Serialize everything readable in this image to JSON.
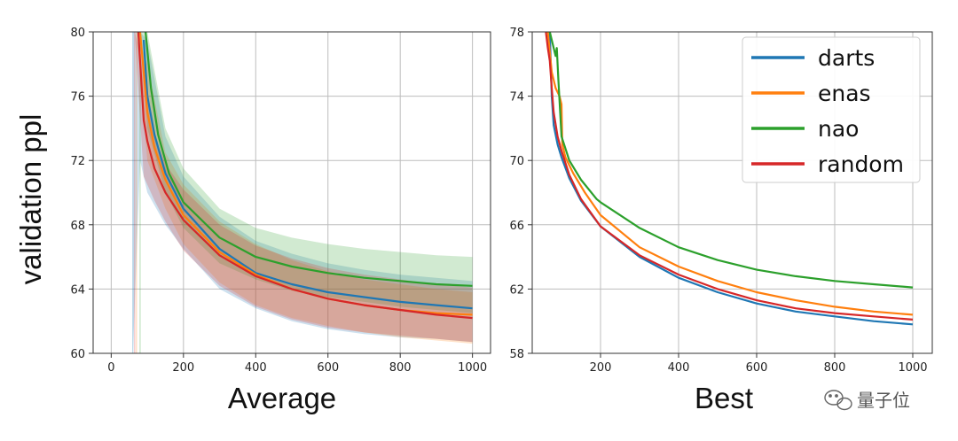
{
  "figure": {
    "ylabel": "validation ppl",
    "watermark": "量子位",
    "watermark_icon": "wechat-icon"
  },
  "chart_data": [
    {
      "type": "line",
      "title": "",
      "xlabel": "Average",
      "ylabel": "validation ppl",
      "xlim": [
        -50,
        1050
      ],
      "ylim": [
        60,
        80
      ],
      "xticks": [
        0,
        200,
        400,
        600,
        800,
        1000
      ],
      "yticks": [
        60,
        64,
        68,
        72,
        76,
        80
      ],
      "grid": true,
      "series": [
        {
          "name": "darts",
          "color": "#1f77b4",
          "x": [
            90,
            100,
            120,
            150,
            200,
            300,
            400,
            500,
            600,
            700,
            800,
            900,
            1000
          ],
          "y": [
            79.5,
            76.0,
            73.6,
            71.2,
            69.0,
            66.5,
            65.0,
            64.3,
            63.8,
            63.5,
            63.2,
            63.0,
            62.8
          ],
          "band": {
            "x": [
              60,
              80,
              100,
              150,
              200,
              300,
              400,
              500,
              600,
              700,
              800,
              900,
              1000
            ],
            "upper": [
              80,
              80,
              79.5,
              73.5,
              71.0,
              68.5,
              67.0,
              66.2,
              65.6,
              65.2,
              64.9,
              64.7,
              64.5
            ],
            "lower": [
              60,
              72,
              70.0,
              68.0,
              66.5,
              64.0,
              62.8,
              62.0,
              61.5,
              61.2,
              61.0,
              60.9,
              60.7
            ]
          }
        },
        {
          "name": "enas",
          "color": "#ff7f0e",
          "x": [
            80,
            100,
            120,
            150,
            200,
            300,
            400,
            500,
            600,
            700,
            800,
            900,
            1000
          ],
          "y": [
            80,
            75.0,
            72.8,
            70.8,
            68.6,
            66.3,
            64.9,
            64.0,
            63.4,
            63.0,
            62.7,
            62.5,
            62.4
          ],
          "band": {
            "x": [
              70,
              100,
              150,
              200,
              300,
              400,
              500,
              600,
              700,
              800,
              900,
              1000
            ],
            "upper": [
              80,
              78.0,
              72.5,
              70.5,
              68.2,
              66.8,
              65.8,
              65.1,
              64.6,
              64.3,
              64.0,
              63.8
            ],
            "lower": [
              80,
              72.0,
              69.0,
              66.8,
              64.4,
              63.0,
              62.2,
              61.7,
              61.3,
              61.0,
              60.8,
              60.6
            ]
          }
        },
        {
          "name": "nao",
          "color": "#2ca02c",
          "x": [
            95,
            110,
            130,
            160,
            200,
            300,
            400,
            500,
            600,
            700,
            800,
            900,
            1000
          ],
          "y": [
            80,
            76.5,
            73.6,
            71.2,
            69.4,
            67.2,
            66.0,
            65.4,
            65.0,
            64.7,
            64.5,
            64.3,
            64.2
          ],
          "band": {
            "x": [
              80,
              100,
              150,
              200,
              300,
              400,
              500,
              600,
              700,
              800,
              900,
              1000
            ],
            "upper": [
              80,
              80,
              74.0,
              71.5,
              69.0,
              67.8,
              67.2,
              66.8,
              66.5,
              66.3,
              66.1,
              66.0
            ],
            "lower": [
              80,
              74.0,
              70.0,
              67.8,
              65.6,
              64.6,
              63.9,
              63.5,
              63.2,
              62.9,
              62.7,
              62.5
            ]
          }
        },
        {
          "name": "random",
          "color": "#d62728",
          "x": [
            75,
            90,
            100,
            120,
            150,
            200,
            300,
            400,
            500,
            600,
            700,
            800,
            900,
            1000
          ],
          "y": [
            80,
            74.5,
            73.2,
            71.5,
            70.0,
            68.3,
            66.1,
            64.8,
            64.0,
            63.4,
            63.0,
            62.7,
            62.4,
            62.2
          ],
          "band": {
            "x": [
              65,
              90,
              120,
              150,
              200,
              300,
              400,
              500,
              600,
              700,
              800,
              900,
              1000
            ],
            "upper": [
              80,
              78.0,
              73.5,
              71.8,
              70.2,
              68.0,
              66.7,
              65.9,
              65.3,
              64.9,
              64.6,
              64.3,
              64.1
            ],
            "lower": [
              80,
              71.0,
              69.5,
              68.2,
              66.4,
              64.2,
              62.9,
              62.1,
              61.6,
              61.3,
              61.1,
              60.9,
              60.7
            ]
          }
        }
      ]
    },
    {
      "type": "line",
      "title": "",
      "xlabel": "Best",
      "ylabel": "",
      "xlim": [
        25,
        1050
      ],
      "ylim": [
        58,
        78
      ],
      "xticks": [
        200,
        400,
        600,
        800,
        1000
      ],
      "yticks": [
        58,
        62,
        66,
        70,
        74,
        78
      ],
      "grid": true,
      "legend": {
        "position": "top-right",
        "entries": [
          "darts",
          "enas",
          "nao",
          "random"
        ]
      },
      "series": [
        {
          "name": "darts",
          "color": "#1f77b4",
          "x": [
            70,
            75,
            80,
            90,
            100,
            120,
            150,
            200,
            300,
            400,
            500,
            600,
            700,
            800,
            900,
            1000
          ],
          "y": [
            78,
            74.0,
            72.2,
            71.0,
            70.2,
            68.9,
            67.5,
            65.9,
            64.0,
            62.7,
            61.8,
            61.1,
            60.6,
            60.3,
            60.0,
            59.8
          ]
        },
        {
          "name": "enas",
          "color": "#ff7f0e",
          "x": [
            65,
            75,
            85,
            95,
            100,
            102,
            110,
            130,
            160,
            200,
            300,
            400,
            500,
            600,
            700,
            800,
            900,
            1000
          ],
          "y": [
            78,
            75.5,
            74.5,
            74.0,
            73.5,
            71.0,
            70.2,
            69.2,
            68.0,
            66.6,
            64.6,
            63.4,
            62.5,
            61.8,
            61.3,
            60.9,
            60.6,
            60.4
          ]
        },
        {
          "name": "nao",
          "color": "#2ca02c",
          "x": [
            70,
            80,
            85,
            88,
            92,
            100,
            120,
            150,
            190,
            200,
            300,
            400,
            500,
            600,
            700,
            800,
            900,
            1000
          ],
          "y": [
            78,
            77.0,
            76.5,
            77.0,
            75.0,
            71.5,
            70.0,
            68.8,
            67.6,
            67.4,
            65.8,
            64.6,
            63.8,
            63.2,
            62.8,
            62.5,
            62.3,
            62.1
          ]
        },
        {
          "name": "random",
          "color": "#d62728",
          "x": [
            60,
            65,
            70,
            75,
            80,
            90,
            100,
            120,
            150,
            200,
            300,
            400,
            500,
            600,
            700,
            800,
            900,
            1000
          ],
          "y": [
            78,
            77.0,
            76.2,
            74.5,
            73.0,
            71.5,
            70.6,
            69.1,
            67.6,
            65.9,
            64.1,
            62.9,
            62.0,
            61.3,
            60.8,
            60.5,
            60.3,
            60.1
          ]
        }
      ]
    }
  ]
}
